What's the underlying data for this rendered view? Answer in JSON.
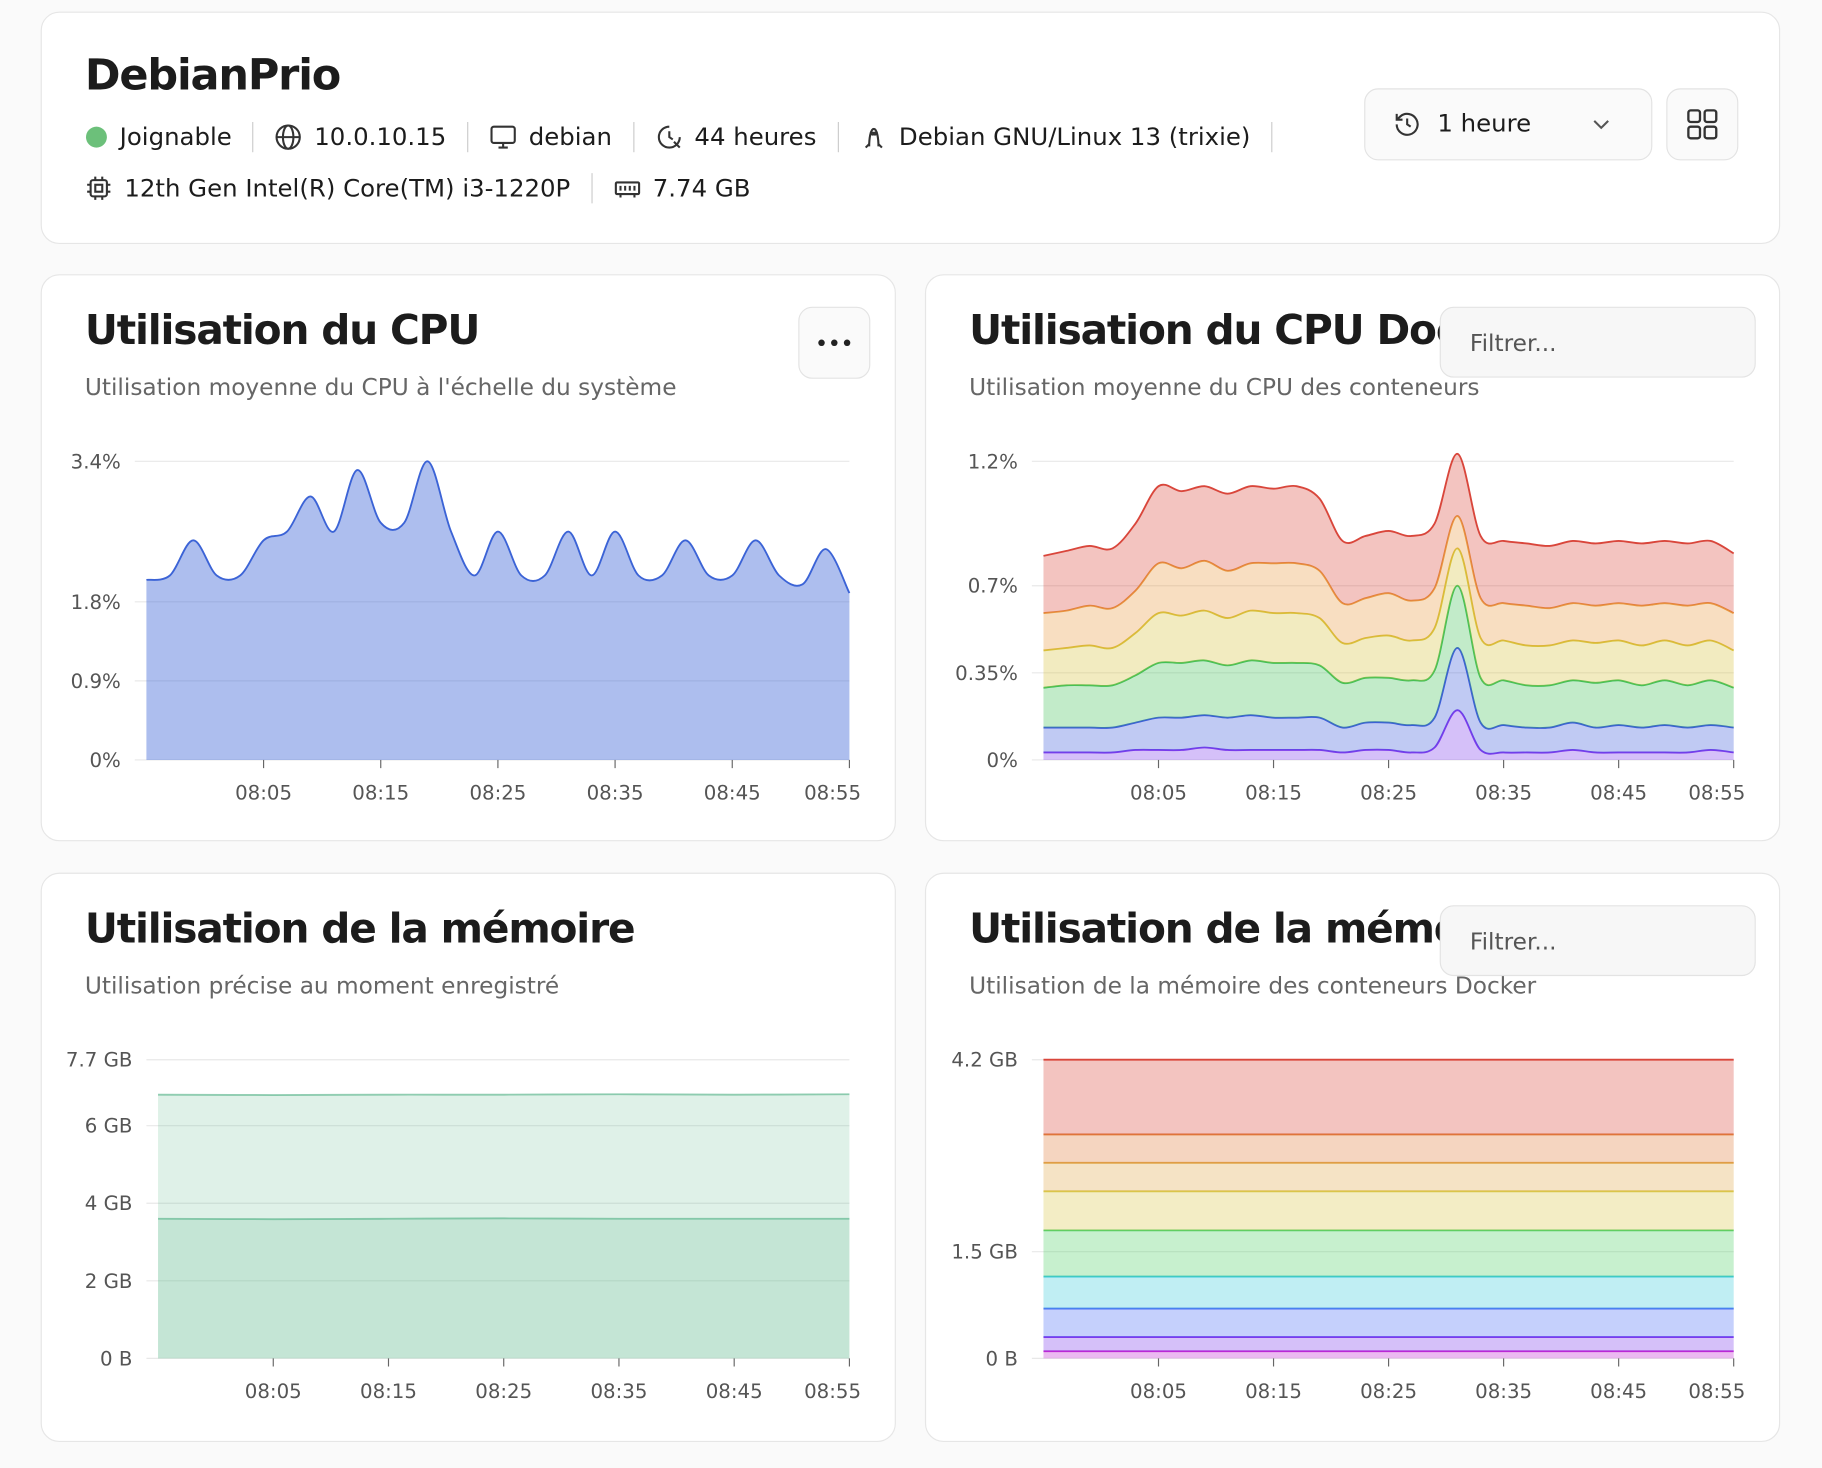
{
  "header": {
    "title": "DebianPrio",
    "status": "Joignable",
    "ip": "10.0.10.15",
    "hostname": "debian",
    "uptime": "44 heures",
    "os": "Debian GNU/Linux 13 (trixie)",
    "cpu": "12th Gen Intel(R) Core(TM) i3-1220P",
    "memory": "7.74 GB",
    "time_range": "1 heure"
  },
  "chart_data": [
    {
      "type": "area",
      "title": "Utilisation du CPU",
      "subtitle": "Utilisation moyenne du CPU à l'échelle du système",
      "stacked": false,
      "grid": true,
      "x": [
        -5,
        -3,
        -1,
        1,
        3,
        5,
        7,
        9,
        11,
        13,
        15,
        17,
        19,
        21,
        23,
        25,
        27,
        29,
        31,
        33,
        35,
        37,
        39,
        41,
        43,
        45,
        47,
        49,
        51,
        53,
        55
      ],
      "xlim": [
        -5,
        55
      ],
      "xticks": [
        {
          "value": 5,
          "label": "08:05"
        },
        {
          "value": 15,
          "label": "08:15"
        },
        {
          "value": 25,
          "label": "08:25"
        },
        {
          "value": 35,
          "label": "08:35"
        },
        {
          "value": 45,
          "label": "08:45"
        },
        {
          "value": 55,
          "label": "08:55"
        }
      ],
      "ylim": [
        0,
        3.4
      ],
      "yticks": [
        {
          "value": 0,
          "label": "0%"
        },
        {
          "value": 0.9,
          "label": "0.9%"
        },
        {
          "value": 1.8,
          "label": "1.8%"
        },
        {
          "value": 3.4,
          "label": "3.4%"
        }
      ],
      "series": [
        {
          "color": "#3b63d6",
          "values": [
            2.05,
            2.1,
            2.5,
            2.1,
            2.1,
            2.5,
            2.6,
            3.0,
            2.6,
            3.3,
            2.7,
            2.7,
            3.4,
            2.6,
            2.1,
            2.6,
            2.1,
            2.1,
            2.6,
            2.1,
            2.6,
            2.1,
            2.1,
            2.5,
            2.1,
            2.1,
            2.5,
            2.1,
            2.0,
            2.4,
            1.9
          ]
        }
      ]
    },
    {
      "type": "area",
      "title": "Utilisation du CPU Docker",
      "subtitle": "Utilisation moyenne du CPU des conteneurs",
      "filter_placeholder": "Filtrer...",
      "stacked": true,
      "grid": true,
      "x": [
        -5,
        -3,
        -1,
        1,
        3,
        5,
        7,
        9,
        11,
        13,
        15,
        17,
        19,
        21,
        23,
        25,
        27,
        29,
        31,
        33,
        35,
        37,
        39,
        41,
        43,
        45,
        47,
        49,
        51,
        53,
        55
      ],
      "xlim": [
        -5,
        55
      ],
      "xticks": [
        {
          "value": 5,
          "label": "08:05"
        },
        {
          "value": 15,
          "label": "08:15"
        },
        {
          "value": 25,
          "label": "08:25"
        },
        {
          "value": 35,
          "label": "08:35"
        },
        {
          "value": 45,
          "label": "08:45"
        },
        {
          "value": 55,
          "label": "08:55"
        }
      ],
      "ylim": [
        0,
        1.2
      ],
      "yticks": [
        {
          "value": 0,
          "label": "0%"
        },
        {
          "value": 0.35,
          "label": "0.35%"
        },
        {
          "value": 0.7,
          "label": "0.7%"
        },
        {
          "value": 1.2,
          "label": "1.2%"
        }
      ],
      "series": [
        {
          "color": "#7c3aed",
          "values": [
            0.03,
            0.03,
            0.03,
            0.03,
            0.04,
            0.04,
            0.04,
            0.05,
            0.04,
            0.04,
            0.04,
            0.04,
            0.04,
            0.03,
            0.04,
            0.04,
            0.03,
            0.05,
            0.2,
            0.04,
            0.03,
            0.03,
            0.03,
            0.04,
            0.03,
            0.03,
            0.03,
            0.03,
            0.03,
            0.04,
            0.03
          ]
        },
        {
          "color": "#3b5bdb",
          "values": [
            0.1,
            0.1,
            0.1,
            0.1,
            0.11,
            0.13,
            0.13,
            0.13,
            0.13,
            0.14,
            0.13,
            0.13,
            0.13,
            0.1,
            0.11,
            0.11,
            0.11,
            0.12,
            0.25,
            0.11,
            0.11,
            0.1,
            0.1,
            0.11,
            0.1,
            0.11,
            0.1,
            0.11,
            0.1,
            0.1,
            0.1
          ]
        },
        {
          "color": "#40c057",
          "values": [
            0.16,
            0.17,
            0.17,
            0.17,
            0.19,
            0.22,
            0.22,
            0.22,
            0.21,
            0.22,
            0.22,
            0.22,
            0.21,
            0.18,
            0.18,
            0.18,
            0.18,
            0.19,
            0.25,
            0.18,
            0.18,
            0.17,
            0.17,
            0.17,
            0.18,
            0.18,
            0.17,
            0.18,
            0.17,
            0.18,
            0.16
          ]
        },
        {
          "color": "#d8c23a",
          "values": [
            0.15,
            0.15,
            0.16,
            0.15,
            0.17,
            0.2,
            0.19,
            0.2,
            0.19,
            0.2,
            0.2,
            0.2,
            0.19,
            0.16,
            0.16,
            0.17,
            0.16,
            0.17,
            0.15,
            0.16,
            0.16,
            0.16,
            0.16,
            0.16,
            0.16,
            0.16,
            0.16,
            0.16,
            0.16,
            0.16,
            0.15
          ]
        },
        {
          "color": "#e8973f",
          "values": [
            0.15,
            0.15,
            0.16,
            0.16,
            0.17,
            0.2,
            0.19,
            0.2,
            0.19,
            0.19,
            0.2,
            0.2,
            0.19,
            0.16,
            0.16,
            0.17,
            0.16,
            0.16,
            0.13,
            0.16,
            0.15,
            0.16,
            0.15,
            0.15,
            0.15,
            0.15,
            0.16,
            0.15,
            0.16,
            0.15,
            0.15
          ]
        },
        {
          "color": "#d9463b",
          "values": [
            0.23,
            0.24,
            0.24,
            0.24,
            0.27,
            0.31,
            0.31,
            0.3,
            0.31,
            0.31,
            0.3,
            0.31,
            0.29,
            0.25,
            0.25,
            0.25,
            0.26,
            0.26,
            0.25,
            0.25,
            0.25,
            0.25,
            0.25,
            0.25,
            0.25,
            0.25,
            0.25,
            0.25,
            0.25,
            0.25,
            0.24
          ]
        }
      ]
    },
    {
      "type": "area",
      "title": "Utilisation de la mémoire",
      "subtitle": "Utilisation précise au moment enregistré",
      "stacked": false,
      "grid": true,
      "x": [
        -5,
        5,
        15,
        25,
        35,
        45,
        55
      ],
      "xlim": [
        -5,
        55
      ],
      "xticks": [
        {
          "value": 5,
          "label": "08:05"
        },
        {
          "value": 15,
          "label": "08:15"
        },
        {
          "value": 25,
          "label": "08:25"
        },
        {
          "value": 35,
          "label": "08:35"
        },
        {
          "value": 45,
          "label": "08:45"
        },
        {
          "value": 55,
          "label": "08:55"
        }
      ],
      "ylim": [
        0,
        7.7
      ],
      "yticks": [
        {
          "value": 0,
          "label": "0 B"
        },
        {
          "value": 2,
          "label": "2 GB"
        },
        {
          "value": 4,
          "label": "4 GB"
        },
        {
          "value": 6,
          "label": "6 GB"
        },
        {
          "value": 7.7,
          "label": "7.7 GB"
        }
      ],
      "series": [
        {
          "color": "#4caf82",
          "values": [
            6.8,
            6.79,
            6.8,
            6.8,
            6.81,
            6.8,
            6.81
          ]
        },
        {
          "color": "#4caf82",
          "values": [
            3.6,
            3.59,
            3.6,
            3.61,
            3.6,
            3.6,
            3.6
          ]
        }
      ]
    },
    {
      "type": "area",
      "title": "Utilisation de la mémoire Docker",
      "subtitle": "Utilisation de la mémoire des conteneurs Docker",
      "filter_placeholder": "Filtrer...",
      "stacked": true,
      "grid": true,
      "x": [
        -5,
        25,
        55
      ],
      "xlim": [
        -5,
        55
      ],
      "xticks": [
        {
          "value": 5,
          "label": "08:05"
        },
        {
          "value": 15,
          "label": "08:15"
        },
        {
          "value": 25,
          "label": "08:25"
        },
        {
          "value": 35,
          "label": "08:35"
        },
        {
          "value": 45,
          "label": "08:45"
        },
        {
          "value": 55,
          "label": "08:55"
        }
      ],
      "ylim": [
        0,
        4.2
      ],
      "yticks": [
        {
          "value": 0,
          "label": "0 B"
        },
        {
          "value": 1.5,
          "label": "1.5 GB"
        },
        {
          "value": 4.2,
          "label": "4.2 GB"
        }
      ],
      "series": [
        {
          "color": "#c026d3",
          "values": [
            0.1,
            0.1,
            0.1
          ]
        },
        {
          "color": "#7c3aed",
          "values": [
            0.2,
            0.2,
            0.2
          ]
        },
        {
          "color": "#4c6ef5",
          "values": [
            0.4,
            0.4,
            0.4
          ]
        },
        {
          "color": "#3bc9db",
          "values": [
            0.45,
            0.45,
            0.45
          ]
        },
        {
          "color": "#51cf66",
          "values": [
            0.65,
            0.65,
            0.65
          ]
        },
        {
          "color": "#d9c84a",
          "values": [
            0.55,
            0.55,
            0.55
          ]
        },
        {
          "color": "#e0a84a",
          "values": [
            0.4,
            0.4,
            0.4
          ]
        },
        {
          "color": "#e07b3a",
          "values": [
            0.4,
            0.4,
            0.4
          ]
        },
        {
          "color": "#d9463b",
          "values": [
            1.05,
            1.05,
            1.05
          ]
        }
      ]
    }
  ]
}
